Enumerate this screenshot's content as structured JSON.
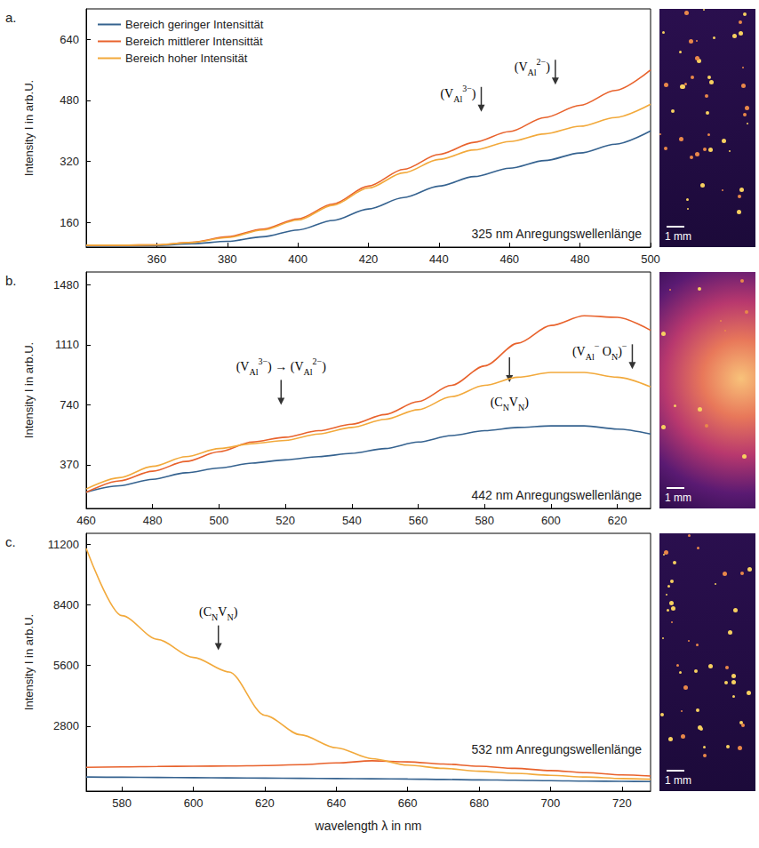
{
  "chart_data": [
    {
      "type": "line",
      "panel": "a.",
      "ylabel": "Intensity I in arb.U.",
      "note": "325 nm Anregungswellenlänge",
      "scale_bar": "1 mm",
      "legend": "upper left",
      "grid": false,
      "xlim": [
        340,
        500
      ],
      "xticks": [
        360,
        380,
        400,
        420,
        440,
        460,
        480,
        500
      ],
      "ylim": [
        95,
        720
      ],
      "yticks": [
        160,
        320,
        480,
        640
      ],
      "x": [
        340,
        350,
        360,
        370,
        380,
        390,
        400,
        410,
        420,
        430,
        440,
        450,
        460,
        470,
        480,
        490,
        500
      ],
      "series": [
        {
          "name": "Bereich geringer Intensittät",
          "color": "#35628f",
          "values": [
            98,
            98,
            99,
            104,
            110,
            122,
            140,
            165,
            195,
            225,
            255,
            280,
            302,
            322,
            342,
            365,
            400
          ]
        },
        {
          "name": "Bereich mittlerer Intensittät",
          "color": "#e8622c",
          "values": [
            100,
            100,
            101,
            108,
            122,
            142,
            169,
            208,
            255,
            299,
            338,
            370,
            398,
            435,
            467,
            506,
            560
          ]
        },
        {
          "name": "Bereich hoher Intensität",
          "color": "#f2a93b",
          "values": [
            100,
            100,
            101,
            107,
            120,
            140,
            166,
            205,
            250,
            290,
            325,
            350,
            372,
            392,
            412,
            435,
            470
          ]
        }
      ],
      "annotations": [
        {
          "parts": [
            {
              "text": "(V"
            },
            {
              "sub": "Al"
            },
            {
              "sup": "2−"
            },
            {
              "text": ")"
            }
          ],
          "x": 473,
          "y": 521
        },
        {
          "parts": [
            {
              "text": "(V"
            },
            {
              "sub": "Al"
            },
            {
              "sup": "3−"
            },
            {
              "text": ")"
            }
          ],
          "x": 452,
          "y": 450
        }
      ]
    },
    {
      "type": "line",
      "panel": "b.",
      "ylabel": "Intensity I in arb.U.",
      "note": "442 nm Anregungswellenlänge",
      "scale_bar": "1 mm",
      "grid": false,
      "xlim": [
        460,
        630
      ],
      "xticks": [
        460,
        480,
        500,
        520,
        540,
        560,
        580,
        600,
        620
      ],
      "ylim": [
        100,
        1560
      ],
      "yticks": [
        370,
        740,
        1110,
        1480
      ],
      "x": [
        460,
        470,
        480,
        490,
        500,
        510,
        520,
        530,
        540,
        550,
        560,
        570,
        580,
        590,
        600,
        610,
        620,
        630
      ],
      "series": [
        {
          "name": "Bereich geringer Intensittät",
          "color": "#35628f",
          "values": [
            200,
            240,
            280,
            320,
            350,
            380,
            400,
            420,
            440,
            470,
            510,
            550,
            580,
            600,
            610,
            610,
            590,
            560
          ]
        },
        {
          "name": "Bereich mittlerer Intensittät",
          "color": "#e8622c",
          "values": [
            200,
            270,
            330,
            390,
            450,
            510,
            540,
            580,
            620,
            680,
            760,
            860,
            980,
            1120,
            1230,
            1290,
            1280,
            1200
          ]
        },
        {
          "name": "Bereich hoher Intensität",
          "color": "#f2a93b",
          "values": [
            220,
            290,
            360,
            420,
            470,
            500,
            520,
            560,
            600,
            650,
            710,
            790,
            860,
            910,
            940,
            940,
            910,
            850
          ]
        }
      ],
      "annotations": [
        {
          "parts": [
            {
              "text": "(V"
            },
            {
              "sub": "Al"
            },
            {
              "sup": "3−"
            },
            {
              "text": ") → (V"
            },
            {
              "sub": "Al"
            },
            {
              "sup": "2−"
            },
            {
              "text": ")"
            }
          ],
          "x": 518.7,
          "y": 740
        },
        {
          "parts": [
            {
              "text": "(V"
            },
            {
              "sub": "Al"
            },
            {
              "sup": "−"
            },
            {
              "text": " O"
            },
            {
              "sub": "N"
            },
            {
              "text": ")"
            },
            {
              "sup": "−"
            }
          ],
          "x": 624.5,
          "y": 960
        },
        {
          "parts": [
            {
              "text": "(C"
            },
            {
              "sub": "N"
            },
            {
              "text": "V"
            },
            {
              "sub": "N"
            },
            {
              "text": ")"
            }
          ],
          "x": 587.5,
          "y": 880
        }
      ]
    },
    {
      "type": "line",
      "panel": "c.",
      "ylabel": "Intensity I in arb.U.",
      "xlabel": "wavelength λ in nm",
      "note": "532 nm Anregungswellenlänge",
      "scale_bar": "1 mm",
      "grid": false,
      "xlim": [
        570,
        728
      ],
      "xticks": [
        580,
        600,
        620,
        640,
        660,
        680,
        700,
        720
      ],
      "ylim": [
        -200,
        11700
      ],
      "yticks": [
        2800,
        5600,
        8400,
        11200
      ],
      "x": [
        570,
        580,
        590,
        600,
        610,
        620,
        630,
        640,
        650,
        660,
        670,
        680,
        690,
        700,
        710,
        720,
        728
      ],
      "series": [
        {
          "name": "Bereich geringer Intensittät",
          "color": "#35628f",
          "values": [
            450,
            440,
            430,
            420,
            410,
            400,
            390,
            380,
            370,
            360,
            340,
            320,
            300,
            280,
            260,
            250,
            240
          ]
        },
        {
          "name": "Bereich mittlerer Intensittät",
          "color": "#e8622c",
          "values": [
            900,
            920,
            940,
            950,
            960,
            980,
            1020,
            1100,
            1200,
            1150,
            1050,
            950,
            850,
            750,
            650,
            550,
            500
          ]
        },
        {
          "name": "Bereich hoher Intensität",
          "color": "#f2a93b",
          "values": [
            11000,
            7900,
            6800,
            5970,
            5300,
            3300,
            2400,
            1800,
            1300,
            1000,
            850,
            720,
            620,
            530,
            450,
            380,
            350
          ]
        }
      ],
      "annotations": [
        {
          "parts": [
            {
              "text": "(C"
            },
            {
              "sub": "N"
            },
            {
              "text": "V"
            },
            {
              "sub": "N"
            },
            {
              "text": ")"
            }
          ],
          "x": 607,
          "y": 6300
        }
      ]
    }
  ]
}
